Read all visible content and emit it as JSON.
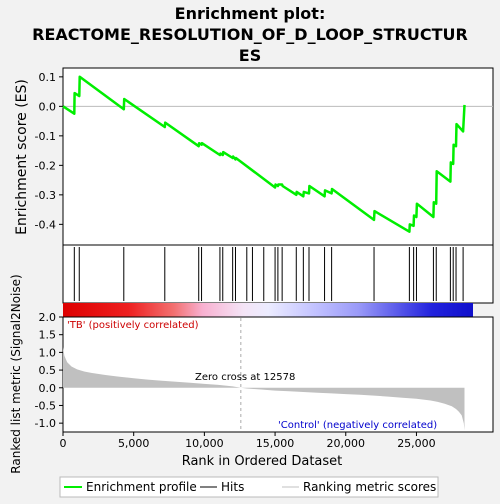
{
  "chart_data": {
    "type": "line",
    "title": "Enrichment plot:",
    "title_lines": [
      "REACTOME_RESOLUTION_OF_D_LOOP_STRUCTUR",
      "ES"
    ],
    "es_panel": {
      "ylabel": "Enrichment score (ES)",
      "ylim": [
        -0.47,
        0.13
      ],
      "y_ticks": [
        0.1,
        0.0,
        -0.1,
        -0.2,
        -0.3,
        -0.4
      ],
      "y_tick_labels": [
        "0.1",
        "0.0",
        "-0.1",
        "-0.2",
        "-0.3",
        "-0.4"
      ],
      "line_color": "#00ee00",
      "x": [
        0,
        800,
        820,
        1150,
        1180,
        4300,
        4330,
        7200,
        7230,
        9600,
        9630,
        9800,
        9830,
        11100,
        11130,
        11300,
        11330,
        12000,
        12030,
        12200,
        12230,
        15000,
        15030,
        15200,
        15230,
        15500,
        15530,
        16500,
        16530,
        17000,
        17030,
        17400,
        17430,
        18500,
        18530,
        19000,
        19030,
        22000,
        22030,
        24500,
        24530,
        24800,
        24830,
        25000,
        25030,
        26200,
        26230,
        26400,
        26430,
        27400,
        27430,
        27600,
        27630,
        27800,
        27830,
        28300,
        28400
      ],
      "y": [
        0.0,
        -0.025,
        0.045,
        0.035,
        0.1,
        -0.01,
        0.025,
        -0.07,
        -0.055,
        -0.135,
        -0.125,
        -0.13,
        -0.125,
        -0.165,
        -0.16,
        -0.165,
        -0.155,
        -0.175,
        -0.17,
        -0.18,
        -0.175,
        -0.275,
        -0.265,
        -0.27,
        -0.265,
        -0.265,
        -0.27,
        -0.3,
        -0.29,
        -0.305,
        -0.29,
        -0.295,
        -0.27,
        -0.305,
        -0.285,
        -0.295,
        -0.28,
        -0.385,
        -0.355,
        -0.425,
        -0.4,
        -0.405,
        -0.37,
        -0.375,
        -0.33,
        -0.375,
        -0.325,
        -0.33,
        -0.22,
        -0.255,
        -0.19,
        -0.195,
        -0.13,
        -0.135,
        -0.06,
        -0.085,
        0.005
      ]
    },
    "hits": [
      800,
      1150,
      4300,
      7200,
      9600,
      9800,
      11100,
      11300,
      12000,
      12200,
      13000,
      13400,
      14200,
      15000,
      15200,
      15500,
      16500,
      17000,
      17400,
      18500,
      19000,
      22000,
      24500,
      24800,
      25000,
      26200,
      26400,
      27400,
      27600,
      27800,
      28300
    ],
    "rank_panel": {
      "ylabel": "Ranked list metric (Signal2Noise)",
      "ylim": [
        -1.25,
        2.0
      ],
      "y_ticks": [
        2.0,
        1.5,
        1.0,
        0.5,
        0.0,
        -0.5,
        -1.0
      ],
      "y_tick_labels": [
        "2.0",
        "1.5",
        "1.0",
        "0.5",
        "0.0",
        "-0.5",
        "-1.0"
      ],
      "profile_x": [
        0,
        100,
        300,
        600,
        1000,
        1500,
        2000,
        3000,
        4000,
        5000,
        6000,
        7000,
        8000,
        9000,
        10000,
        11000,
        12000,
        12578,
        13000,
        14000,
        15000,
        16000,
        17000,
        18000,
        19000,
        20000,
        21000,
        22000,
        23000,
        24000,
        25000,
        26000,
        26500,
        27000,
        27500,
        27800,
        28000,
        28200,
        28350,
        28400
      ],
      "profile_y": [
        1.15,
        0.9,
        0.72,
        0.6,
        0.52,
        0.46,
        0.42,
        0.36,
        0.31,
        0.27,
        0.23,
        0.2,
        0.17,
        0.14,
        0.11,
        0.08,
        0.04,
        0.0,
        -0.02,
        -0.05,
        -0.08,
        -0.1,
        -0.12,
        -0.14,
        -0.16,
        -0.18,
        -0.2,
        -0.22,
        -0.25,
        -0.28,
        -0.31,
        -0.36,
        -0.4,
        -0.45,
        -0.52,
        -0.6,
        -0.68,
        -0.78,
        -1.0,
        -1.2
      ],
      "positive_label": "'TB' (positively correlated)",
      "negative_label": "'Control' (negatively correlated)",
      "zero_cross_label": "Zero cross at 12578",
      "zero_cross": 12578
    },
    "xlabel": "Rank in Ordered Dataset",
    "xlim": [
      0,
      29000
    ],
    "x_ticks": [
      0,
      5000,
      10000,
      15000,
      20000,
      25000
    ],
    "x_tick_labels": [
      "0",
      "5,000",
      "10,000",
      "15,000",
      "20,000",
      "25,000"
    ],
    "legend": {
      "placement": "bottom",
      "items": [
        {
          "label": "Enrichment profile",
          "color": "#00ee00"
        },
        {
          "label": "Hits",
          "color": "#000000"
        },
        {
          "label": "Ranking metric scores",
          "color": "#c0c0c0"
        }
      ]
    }
  }
}
